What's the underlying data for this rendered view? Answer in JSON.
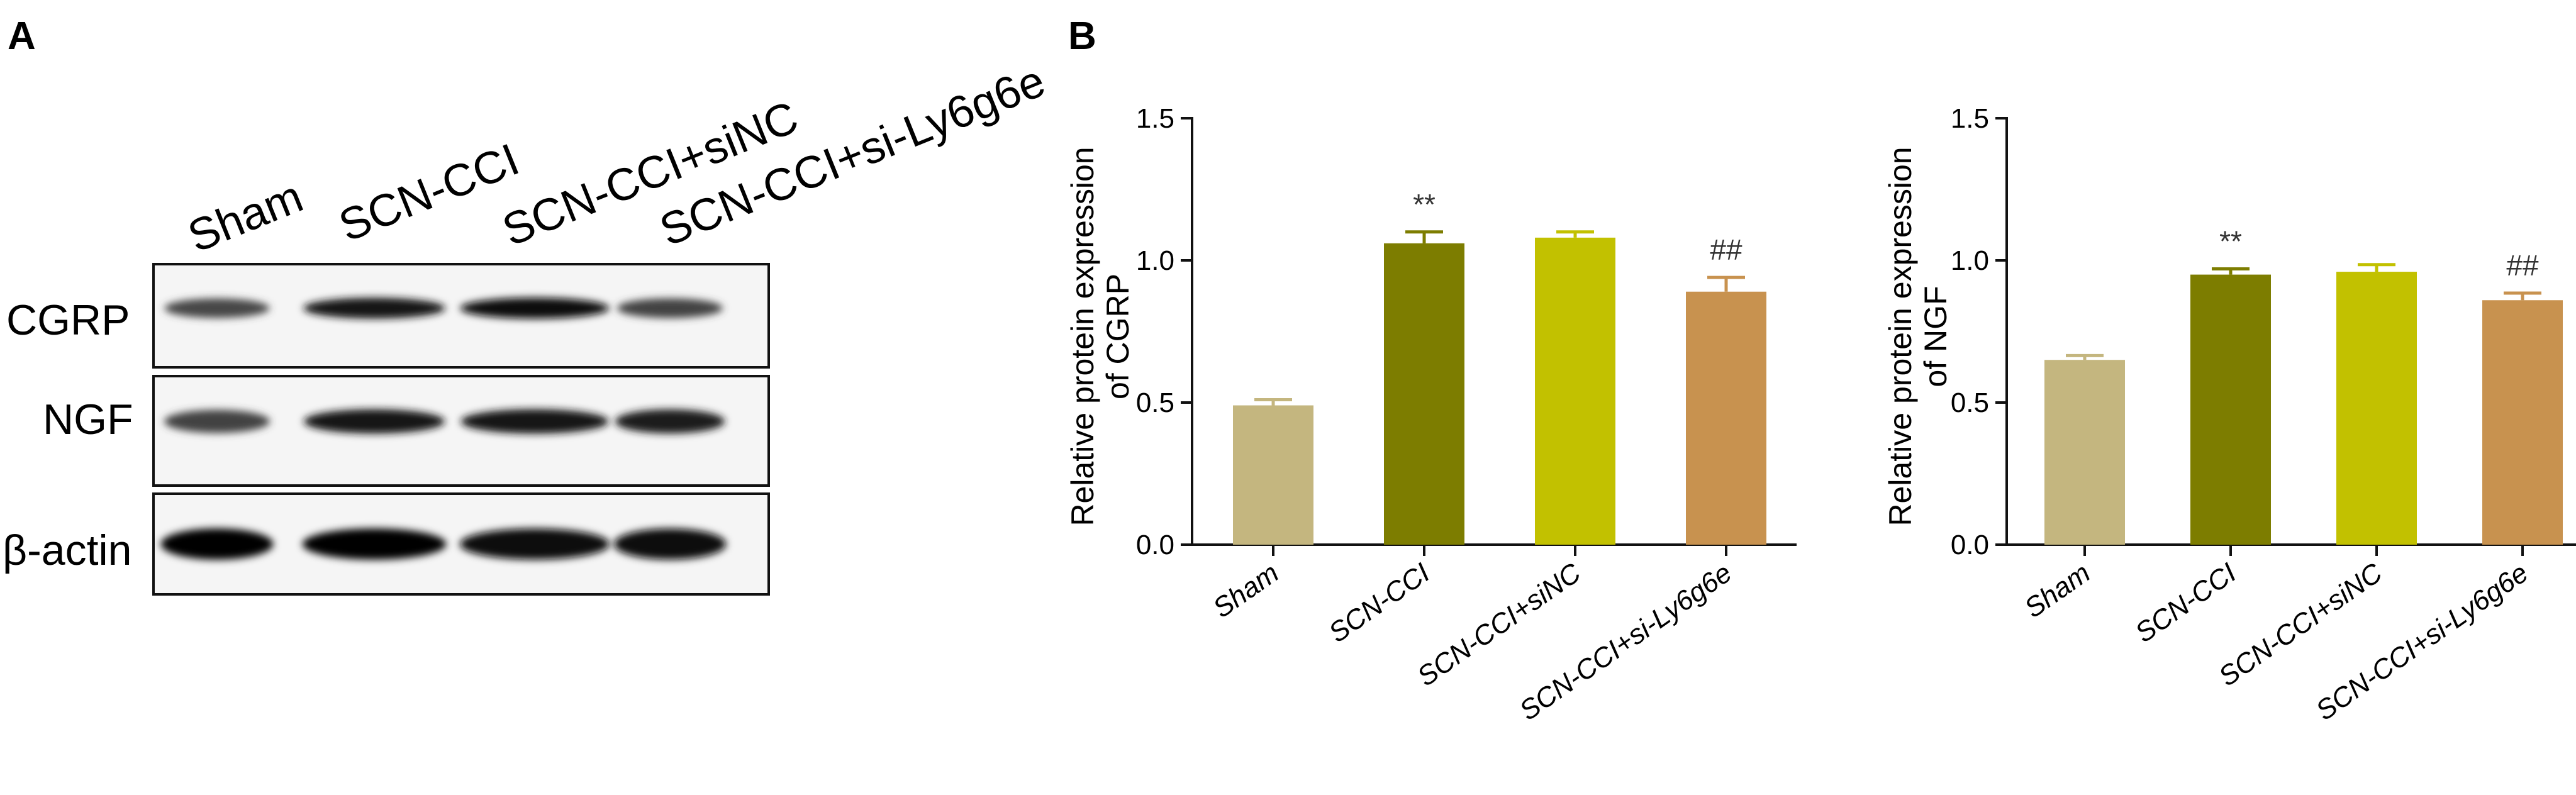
{
  "panels": {
    "a_letter": "A",
    "b_letter": "B"
  },
  "western_blot": {
    "lanes": [
      "Sham",
      "SCN-CCI",
      "SCN-CCI+siNC",
      "SCN-CCI+si-Ly6g6e"
    ],
    "rows": [
      {
        "label": "CGRP",
        "band_intensity": [
          0.72,
          0.92,
          0.95,
          0.74
        ]
      },
      {
        "label": "NGF",
        "band_intensity": [
          0.74,
          0.9,
          0.92,
          0.88
        ]
      },
      {
        "label": "β-actin",
        "band_intensity": [
          0.98,
          0.98,
          0.97,
          0.97
        ]
      }
    ]
  },
  "colors": {
    "sham": "#c4b67f",
    "scn_cci": "#7d7d00",
    "scn_cci_sinc": "#c2c100",
    "scn_cci_si": "#c8924f",
    "error_bar": "#c8924f"
  },
  "chart_data": [
    {
      "type": "bar",
      "title": "",
      "xlabel": "",
      "ylabel": [
        "Relative protein expression",
        "of CGRP"
      ],
      "categories": [
        "Sham",
        "SCN-CCI",
        "SCN-CCI+siNC",
        "SCN-CCI+si-Ly6g6e"
      ],
      "values": [
        0.49,
        1.06,
        1.08,
        0.89
      ],
      "errors": [
        0.02,
        0.04,
        0.02,
        0.05
      ],
      "annotations": [
        "",
        "**",
        "",
        "##"
      ],
      "ylim": [
        0.0,
        1.5
      ],
      "yticks": [
        "0.0",
        "0.5",
        "1.0",
        "1.5"
      ],
      "ytick_values": [
        0.0,
        0.5,
        1.0,
        1.5
      ]
    },
    {
      "type": "bar",
      "title": "",
      "xlabel": "",
      "ylabel": [
        "Relative protein expression",
        "of NGF"
      ],
      "categories": [
        "Sham",
        "SCN-CCI",
        "SCN-CCI+siNC",
        "SCN-CCI+si-Ly6g6e"
      ],
      "values": [
        0.65,
        0.95,
        0.96,
        0.86
      ],
      "errors": [
        0.015,
        0.02,
        0.025,
        0.025
      ],
      "annotations": [
        "",
        "**",
        "",
        "##"
      ],
      "ylim": [
        0.0,
        1.5
      ],
      "yticks": [
        "0.0",
        "0.5",
        "1.0",
        "1.5"
      ],
      "ytick_values": [
        0.0,
        0.5,
        1.0,
        1.5
      ]
    }
  ]
}
